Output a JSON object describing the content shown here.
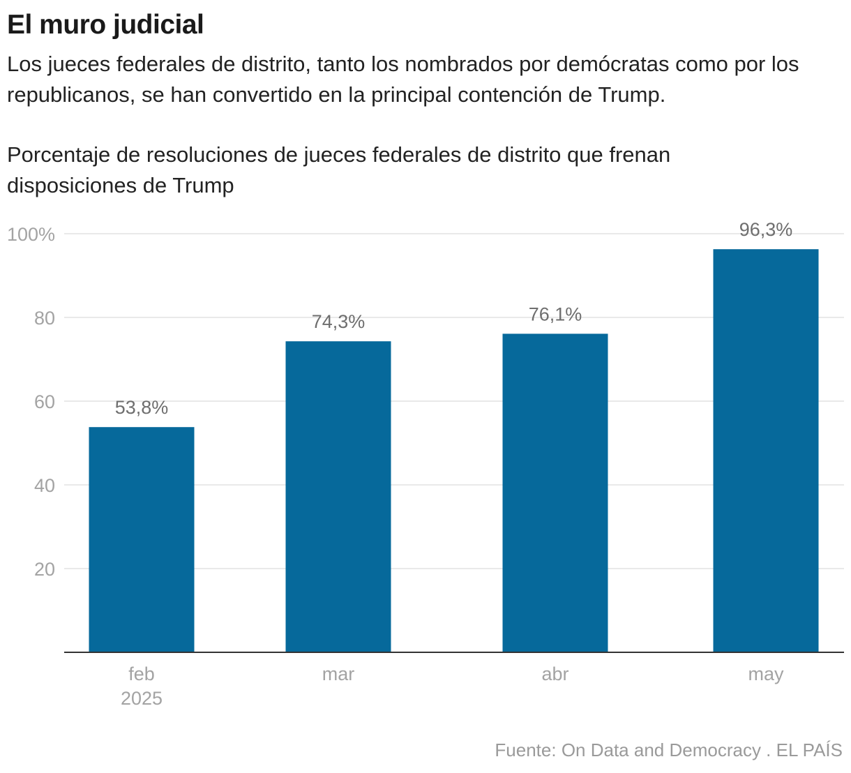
{
  "header": {
    "title": "El muro judicial",
    "subtitle": "Los jueces federales de distrito, tanto los nombrados por demócratas como por los republicanos, se han convertido en la principal contención de Trump."
  },
  "chart_data": {
    "type": "bar",
    "title": "Porcentaje de resoluciones de jueces federales de distrito que frenan disposiciones de Trump",
    "categories": [
      "feb",
      "mar",
      "abr",
      "may"
    ],
    "category_sublabels": [
      "2025",
      "",
      "",
      ""
    ],
    "values": [
      53.8,
      74.3,
      76.1,
      96.3
    ],
    "value_labels": [
      "53,8%",
      "74,3%",
      "76,1%",
      "96,3%"
    ],
    "ylim": [
      0,
      100
    ],
    "yticks": [
      20,
      40,
      60,
      80,
      100
    ],
    "ytick_labels": [
      "20",
      "40",
      "60",
      "80",
      "100%"
    ],
    "xlabel": "",
    "ylabel": "",
    "grid": true,
    "bar_color": "#06699b"
  },
  "footer": {
    "source": "Fuente: On Data and Democracy . EL PAÍS"
  }
}
